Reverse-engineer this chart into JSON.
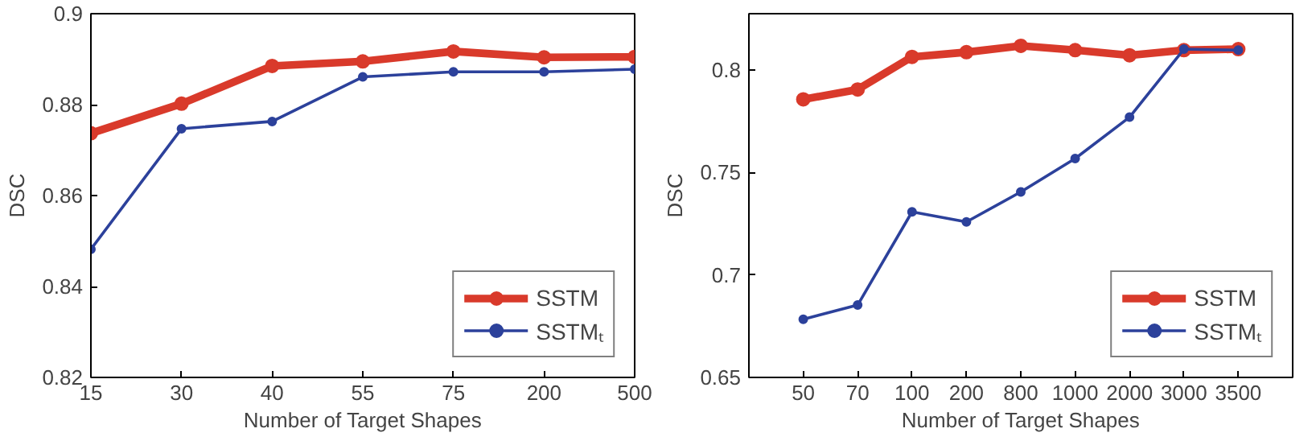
{
  "chart_data": [
    {
      "type": "line",
      "xlabel": "Number of Target Shapes",
      "ylabel": "DSC",
      "categories": [
        "15",
        "30",
        "40",
        "55",
        "75",
        "200",
        "500"
      ],
      "series": [
        {
          "name": "SSTM",
          "color": "#d93a2b",
          "values": [
            0.8737,
            0.8802,
            0.8885,
            0.8895,
            0.8917,
            0.8904,
            0.8905
          ]
        },
        {
          "name": "SSTMₜ",
          "color": "#2c419b",
          "values": [
            0.8482,
            0.8747,
            0.8763,
            0.8861,
            0.8872,
            0.8872,
            0.8878
          ]
        }
      ],
      "ylim": [
        0.82,
        0.9
      ],
      "yticks": [
        0.82,
        0.84,
        0.86,
        0.88,
        0.9
      ],
      "grid": false,
      "legend": "bottom right",
      "marker": "circle",
      "line_style": "solid"
    },
    {
      "type": "line",
      "xlabel": "Number of Target Shapes",
      "ylabel": "DSC",
      "categories": [
        "50",
        "70",
        "100",
        "200",
        "800",
        "1000",
        "2000",
        "3000",
        "3500"
      ],
      "series": [
        {
          "name": "SSTM",
          "color": "#d93a2b",
          "values": [
            0.7857,
            0.7905,
            0.8064,
            0.8087,
            0.8118,
            0.8097,
            0.8072,
            0.8097,
            0.8102
          ]
        },
        {
          "name": "SSTMₜ",
          "color": "#2c419b",
          "values": [
            0.6784,
            0.6853,
            0.7308,
            0.7259,
            0.7405,
            0.7568,
            0.777,
            0.8102,
            0.8097
          ]
        }
      ],
      "ylim": [
        0.65,
        0.8275
      ],
      "yticks": [
        0.65,
        0.7,
        0.75,
        0.8
      ],
      "grid": false,
      "legend": "bottom right",
      "marker": "circle",
      "line_style": "solid"
    }
  ]
}
